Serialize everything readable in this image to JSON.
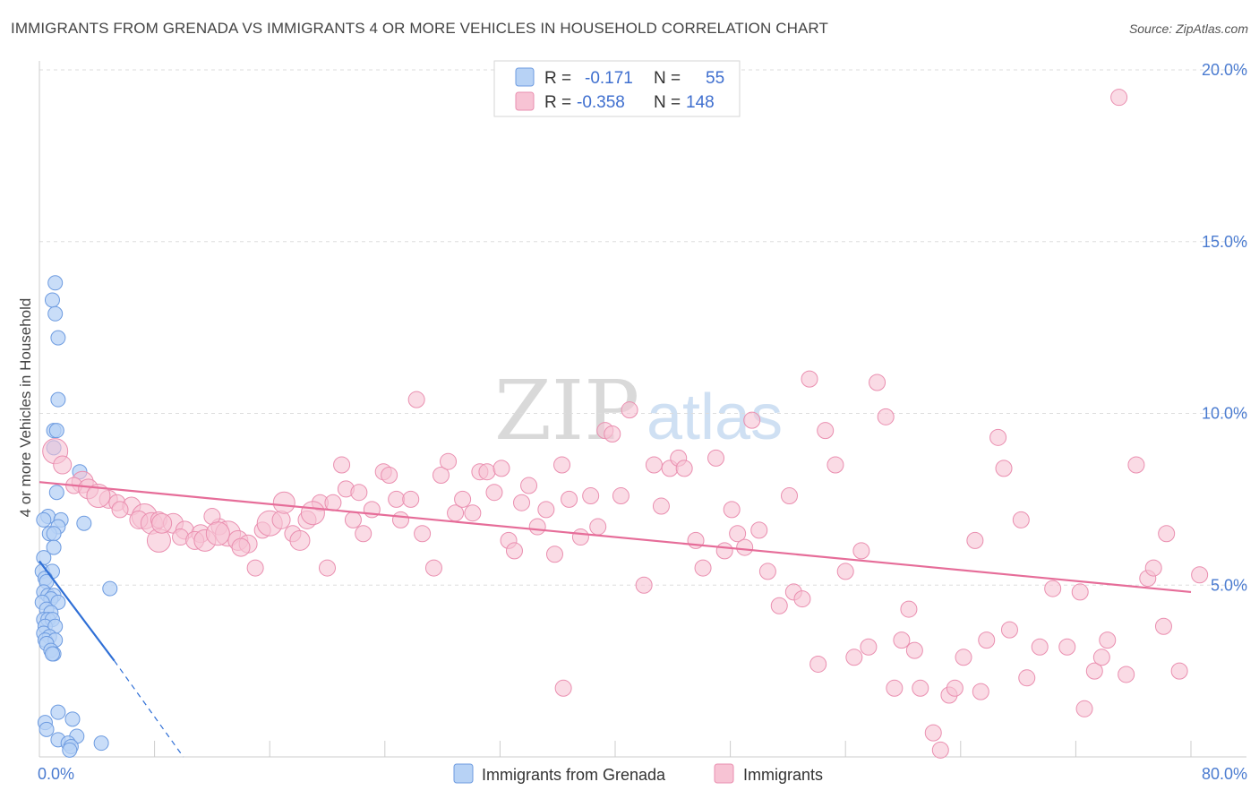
{
  "title": "IMMIGRANTS FROM GRENADA VS IMMIGRANTS 4 OR MORE VEHICLES IN HOUSEHOLD CORRELATION CHART",
  "source": "Source: ZipAtlas.com",
  "watermark": {
    "zip": "ZIP",
    "atlas": "atlas"
  },
  "colors": {
    "blue_fill": "#b7d2f5",
    "blue_stroke": "#6d9be0",
    "blue_line": "#2f6fd6",
    "pink_fill": "#f7c3d4",
    "pink_stroke": "#ea8fb0",
    "pink_line": "#e66d99",
    "tick": "#4a7bd0",
    "grid": "#dddddd"
  },
  "legend": {
    "rows": [
      {
        "r_label": "R =",
        "r_value": "-0.171",
        "n_label": "N =",
        "n_value": "55"
      },
      {
        "r_label": "R =",
        "r_value": "-0.358",
        "n_label": "N =",
        "n_value": "148"
      }
    ]
  },
  "chart_data": {
    "type": "scatter",
    "xlabel": "",
    "ylabel": "4 or more Vehicles in Household",
    "xlim": [
      0,
      80
    ],
    "ylim": [
      0,
      20
    ],
    "x_tick_labels": [
      "0.0%",
      "80.0%"
    ],
    "y_ticks": [
      5,
      10,
      15,
      20
    ],
    "y_tick_labels": [
      "5.0%",
      "10.0%",
      "15.0%",
      "20.0%"
    ],
    "grid": true,
    "legend_position": "top-center",
    "series": [
      {
        "name": "Immigrants from Grenada",
        "color": "#b7d2f5",
        "points": [
          [
            1.1,
            13.8
          ],
          [
            0.9,
            13.3
          ],
          [
            1.1,
            12.9
          ],
          [
            1.3,
            12.2
          ],
          [
            1.3,
            10.4
          ],
          [
            1.0,
            9.5
          ],
          [
            1.2,
            9.5
          ],
          [
            1.0,
            9.0
          ],
          [
            2.8,
            8.3
          ],
          [
            1.2,
            7.7
          ],
          [
            0.6,
            7.0
          ],
          [
            0.3,
            6.9
          ],
          [
            1.5,
            6.9
          ],
          [
            3.1,
            6.8
          ],
          [
            1.3,
            6.7
          ],
          [
            0.7,
            6.5
          ],
          [
            1.0,
            6.5
          ],
          [
            1.0,
            6.1
          ],
          [
            0.3,
            5.8
          ],
          [
            0.2,
            5.4
          ],
          [
            0.9,
            5.4
          ],
          [
            0.4,
            5.2
          ],
          [
            0.5,
            5.1
          ],
          [
            4.9,
            4.9
          ],
          [
            0.3,
            4.8
          ],
          [
            0.6,
            4.7
          ],
          [
            1.0,
            4.7
          ],
          [
            0.8,
            4.6
          ],
          [
            0.2,
            4.5
          ],
          [
            1.3,
            4.5
          ],
          [
            0.5,
            4.3
          ],
          [
            0.8,
            4.2
          ],
          [
            0.3,
            4.0
          ],
          [
            0.6,
            4.0
          ],
          [
            0.9,
            4.0
          ],
          [
            0.4,
            3.8
          ],
          [
            1.1,
            3.8
          ],
          [
            0.3,
            3.6
          ],
          [
            0.7,
            3.5
          ],
          [
            0.4,
            3.4
          ],
          [
            1.1,
            3.4
          ],
          [
            0.5,
            3.3
          ],
          [
            0.8,
            3.1
          ],
          [
            1.0,
            3.0
          ],
          [
            0.9,
            3.0
          ],
          [
            1.3,
            1.3
          ],
          [
            2.3,
            1.1
          ],
          [
            0.4,
            1.0
          ],
          [
            0.5,
            0.8
          ],
          [
            2.6,
            0.6
          ],
          [
            1.3,
            0.5
          ],
          [
            4.3,
            0.4
          ],
          [
            2.0,
            0.4
          ],
          [
            2.2,
            0.3
          ],
          [
            2.1,
            0.2
          ]
        ],
        "trend": {
          "x": [
            0.0,
            5.2
          ],
          "y": [
            5.7,
            2.8
          ]
        },
        "trend_extension": {
          "x": [
            5.2,
            10.0
          ],
          "y": [
            2.8,
            0.0
          ]
        }
      },
      {
        "name": "Immigrants",
        "color": "#f7c3d4",
        "points": [
          [
            1.1,
            8.9
          ],
          [
            1.6,
            8.5
          ],
          [
            3.0,
            8.0
          ],
          [
            2.4,
            7.9
          ],
          [
            3.4,
            7.8
          ],
          [
            4.8,
            7.5
          ],
          [
            5.4,
            7.4
          ],
          [
            4.1,
            7.6
          ],
          [
            6.4,
            7.3
          ],
          [
            5.6,
            7.2
          ],
          [
            7.3,
            7.0
          ],
          [
            6.9,
            6.9
          ],
          [
            7.8,
            6.8
          ],
          [
            8.3,
            6.9
          ],
          [
            9.3,
            6.8
          ],
          [
            10.1,
            6.6
          ],
          [
            9.8,
            6.4
          ],
          [
            8.3,
            6.3
          ],
          [
            11.2,
            6.5
          ],
          [
            12.5,
            6.7
          ],
          [
            13.1,
            6.5
          ],
          [
            10.8,
            6.3
          ],
          [
            11.5,
            6.3
          ],
          [
            12.0,
            7.0
          ],
          [
            13.8,
            6.3
          ],
          [
            14.5,
            6.2
          ],
          [
            15.0,
            5.5
          ],
          [
            12.4,
            6.5
          ],
          [
            14.0,
            6.1
          ],
          [
            15.5,
            6.6
          ],
          [
            16.0,
            6.8
          ],
          [
            16.8,
            6.9
          ],
          [
            17.0,
            7.4
          ],
          [
            17.6,
            6.5
          ],
          [
            18.1,
            6.3
          ],
          [
            18.6,
            6.9
          ],
          [
            19.5,
            7.4
          ],
          [
            19.0,
            7.1
          ],
          [
            20.0,
            5.5
          ],
          [
            20.4,
            7.4
          ],
          [
            21.0,
            8.5
          ],
          [
            21.3,
            7.8
          ],
          [
            21.8,
            6.9
          ],
          [
            22.2,
            7.7
          ],
          [
            22.5,
            6.5
          ],
          [
            23.1,
            7.2
          ],
          [
            23.9,
            8.3
          ],
          [
            24.3,
            8.2
          ],
          [
            24.8,
            7.5
          ],
          [
            25.1,
            6.9
          ],
          [
            25.8,
            7.5
          ],
          [
            26.2,
            10.4
          ],
          [
            26.6,
            6.5
          ],
          [
            27.4,
            5.5
          ],
          [
            27.9,
            8.2
          ],
          [
            28.4,
            8.6
          ],
          [
            28.9,
            7.1
          ],
          [
            29.4,
            7.5
          ],
          [
            30.1,
            7.1
          ],
          [
            30.6,
            8.3
          ],
          [
            31.1,
            8.3
          ],
          [
            31.6,
            7.7
          ],
          [
            32.1,
            8.4
          ],
          [
            32.6,
            6.3
          ],
          [
            33.0,
            6.0
          ],
          [
            33.5,
            7.4
          ],
          [
            34.0,
            7.9
          ],
          [
            34.6,
            6.7
          ],
          [
            35.2,
            7.2
          ],
          [
            35.8,
            5.9
          ],
          [
            36.3,
            8.5
          ],
          [
            36.8,
            7.5
          ],
          [
            37.6,
            6.4
          ],
          [
            38.3,
            7.6
          ],
          [
            38.8,
            6.7
          ],
          [
            39.3,
            9.5
          ],
          [
            39.8,
            9.4
          ],
          [
            40.4,
            7.6
          ],
          [
            41.0,
            10.1
          ],
          [
            42.0,
            5.0
          ],
          [
            42.7,
            8.5
          ],
          [
            43.2,
            7.3
          ],
          [
            43.8,
            8.4
          ],
          [
            44.4,
            8.7
          ],
          [
            44.8,
            8.4
          ],
          [
            45.6,
            6.3
          ],
          [
            46.1,
            5.5
          ],
          [
            47.0,
            8.7
          ],
          [
            47.6,
            6.0
          ],
          [
            48.1,
            7.2
          ],
          [
            48.5,
            6.5
          ],
          [
            49.0,
            6.1
          ],
          [
            49.5,
            9.8
          ],
          [
            50.0,
            6.6
          ],
          [
            50.6,
            5.4
          ],
          [
            51.4,
            4.4
          ],
          [
            52.1,
            7.6
          ],
          [
            52.4,
            4.8
          ],
          [
            53.0,
            4.6
          ],
          [
            53.5,
            11.0
          ],
          [
            54.1,
            2.7
          ],
          [
            54.6,
            9.5
          ],
          [
            55.3,
            8.5
          ],
          [
            56.0,
            5.4
          ],
          [
            56.6,
            2.9
          ],
          [
            57.1,
            6.0
          ],
          [
            57.6,
            3.2
          ],
          [
            58.2,
            10.9
          ],
          [
            58.8,
            9.9
          ],
          [
            59.4,
            2.0
          ],
          [
            59.9,
            3.4
          ],
          [
            60.4,
            4.3
          ],
          [
            60.8,
            3.1
          ],
          [
            61.2,
            2.0
          ],
          [
            62.1,
            0.7
          ],
          [
            62.6,
            0.2
          ],
          [
            63.2,
            1.8
          ],
          [
            63.6,
            2.0
          ],
          [
            64.2,
            2.9
          ],
          [
            65.0,
            6.3
          ],
          [
            65.4,
            1.9
          ],
          [
            65.8,
            3.4
          ],
          [
            66.6,
            9.3
          ],
          [
            67.0,
            8.4
          ],
          [
            67.4,
            3.7
          ],
          [
            68.2,
            6.9
          ],
          [
            68.6,
            2.3
          ],
          [
            69.5,
            3.2
          ],
          [
            70.4,
            4.9
          ],
          [
            71.4,
            3.2
          ],
          [
            72.3,
            4.8
          ],
          [
            72.6,
            1.4
          ],
          [
            73.3,
            2.5
          ],
          [
            73.8,
            2.9
          ],
          [
            74.2,
            3.4
          ],
          [
            75.0,
            19.2
          ],
          [
            75.5,
            2.4
          ],
          [
            76.2,
            8.5
          ],
          [
            77.0,
            5.2
          ],
          [
            77.4,
            5.5
          ],
          [
            78.1,
            3.8
          ],
          [
            78.3,
            6.5
          ],
          [
            79.2,
            2.5
          ],
          [
            80.6,
            5.3
          ],
          [
            8.5,
            6.8
          ],
          [
            36.4,
            2.0
          ]
        ],
        "trend": {
          "x": [
            0.0,
            80.0
          ],
          "y": [
            8.0,
            4.8
          ]
        }
      }
    ]
  }
}
